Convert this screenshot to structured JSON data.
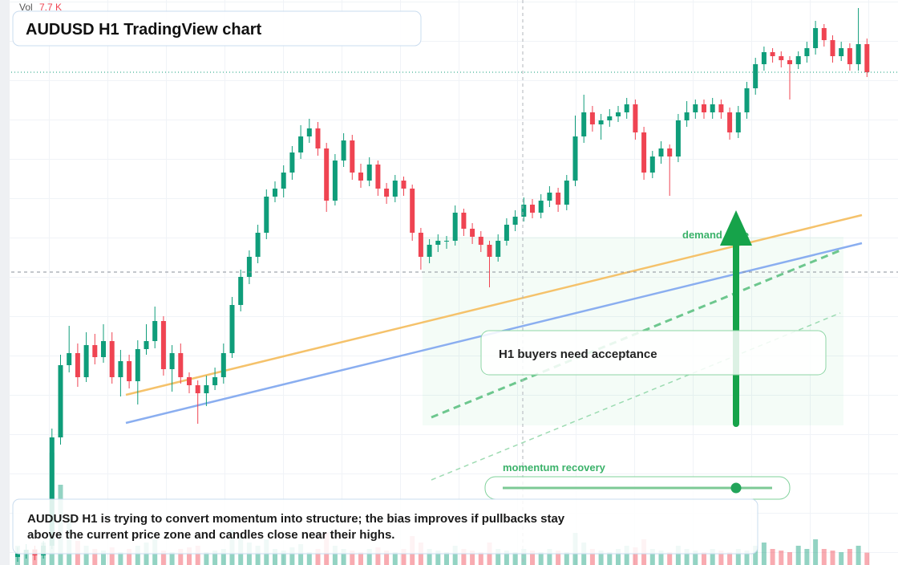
{
  "chart_data": {
    "type": "candlestick",
    "title": "AUDUSD H1 TradingView chart",
    "volume_label": "Vol",
    "volume_readout": "7.7 K",
    "annotations": {
      "zone": "demand zone",
      "callout": "H1 buyers need acceptance",
      "slider": "momentum recovery",
      "note": "AUDUSD H1 is trying to convert momentum into structure; the bias improves if pullbacks stay above the current price zone and candles close near their highs."
    },
    "up_color": "#0f9d7a",
    "down_color": "#ef4452",
    "ylim": [
      0,
      704
    ],
    "volume_lim": [
      0,
      352
    ],
    "candles": [
      [
        10,
        22,
        4,
        14
      ],
      [
        14,
        26,
        8,
        19
      ],
      [
        19,
        24,
        6,
        12
      ],
      [
        12,
        30,
        8,
        24
      ],
      [
        24,
        170,
        20,
        159
      ],
      [
        159,
        262,
        150,
        249
      ],
      [
        249,
        298,
        240,
        264
      ],
      [
        264,
        276,
        222,
        234
      ],
      [
        234,
        290,
        228,
        274
      ],
      [
        274,
        288,
        250,
        259
      ],
      [
        259,
        300,
        252,
        279
      ],
      [
        279,
        290,
        226,
        234
      ],
      [
        234,
        268,
        210,
        254
      ],
      [
        254,
        262,
        220,
        229
      ],
      [
        229,
        280,
        200,
        269
      ],
      [
        269,
        300,
        262,
        279
      ],
      [
        279,
        322,
        270,
        304
      ],
      [
        304,
        310,
        236,
        244
      ],
      [
        244,
        274,
        216,
        264
      ],
      [
        264,
        276,
        226,
        234
      ],
      [
        234,
        240,
        214,
        224
      ],
      [
        224,
        230,
        176,
        214
      ],
      [
        214,
        236,
        198,
        224
      ],
      [
        224,
        246,
        218,
        234
      ],
      [
        234,
        276,
        226,
        264
      ],
      [
        264,
        334,
        258,
        324
      ],
      [
        324,
        368,
        316,
        359
      ],
      [
        359,
        392,
        350,
        384
      ],
      [
        384,
        424,
        376,
        414
      ],
      [
        414,
        468,
        406,
        459
      ],
      [
        459,
        478,
        452,
        469
      ],
      [
        469,
        498,
        458,
        489
      ],
      [
        489,
        522,
        480,
        514
      ],
      [
        514,
        548,
        506,
        534
      ],
      [
        534,
        556,
        526,
        544
      ],
      [
        544,
        552,
        510,
        519
      ],
      [
        519,
        526,
        440,
        454
      ],
      [
        454,
        512,
        448,
        504
      ],
      [
        504,
        538,
        496,
        529
      ],
      [
        529,
        536,
        480,
        489
      ],
      [
        489,
        500,
        470,
        479
      ],
      [
        479,
        508,
        472,
        499
      ],
      [
        499,
        504,
        460,
        469
      ],
      [
        469,
        476,
        450,
        459
      ],
      [
        459,
        486,
        452,
        479
      ],
      [
        479,
        484,
        460,
        469
      ],
      [
        469,
        474,
        404,
        414
      ],
      [
        414,
        420,
        368,
        384
      ],
      [
        384,
        406,
        376,
        399
      ],
      [
        399,
        412,
        390,
        404
      ],
      [
        404,
        410,
        394,
        404
      ],
      [
        404,
        448,
        398,
        439
      ],
      [
        439,
        444,
        410,
        419
      ],
      [
        419,
        426,
        400,
        409
      ],
      [
        409,
        416,
        390,
        399
      ],
      [
        399,
        404,
        346,
        384
      ],
      [
        384,
        412,
        378,
        404
      ],
      [
        404,
        432,
        398,
        424
      ],
      [
        424,
        442,
        416,
        434
      ],
      [
        434,
        458,
        428,
        449
      ],
      [
        449,
        456,
        432,
        439
      ],
      [
        439,
        462,
        432,
        454
      ],
      [
        454,
        472,
        446,
        464
      ],
      [
        464,
        470,
        440,
        449
      ],
      [
        449,
        486,
        442,
        479
      ],
      [
        479,
        560,
        472,
        534
      ],
      [
        534,
        586,
        526,
        564
      ],
      [
        564,
        572,
        540,
        549
      ],
      [
        549,
        562,
        530,
        554
      ],
      [
        554,
        568,
        546,
        559
      ],
      [
        559,
        572,
        552,
        564
      ],
      [
        564,
        582,
        556,
        574
      ],
      [
        574,
        580,
        530,
        539
      ],
      [
        539,
        546,
        480,
        489
      ],
      [
        489,
        516,
        482,
        509
      ],
      [
        509,
        528,
        500,
        519
      ],
      [
        519,
        524,
        460,
        509
      ],
      [
        509,
        562,
        502,
        554
      ],
      [
        554,
        578,
        546,
        564
      ],
      [
        564,
        580,
        556,
        574
      ],
      [
        574,
        580,
        556,
        564
      ],
      [
        564,
        582,
        556,
        574
      ],
      [
        574,
        580,
        556,
        564
      ],
      [
        564,
        570,
        530,
        539
      ],
      [
        539,
        572,
        532,
        564
      ],
      [
        564,
        602,
        556,
        594
      ],
      [
        594,
        632,
        586,
        624
      ],
      [
        624,
        646,
        616,
        639
      ],
      [
        639,
        644,
        626,
        634
      ],
      [
        634,
        640,
        620,
        629
      ],
      [
        629,
        634,
        580,
        624
      ],
      [
        624,
        640,
        618,
        634
      ],
      [
        634,
        652,
        626,
        644
      ],
      [
        644,
        678,
        636,
        669
      ],
      [
        669,
        674,
        646,
        654
      ],
      [
        654,
        660,
        626,
        634
      ],
      [
        634,
        652,
        628,
        644
      ],
      [
        644,
        650,
        616,
        624
      ],
      [
        624,
        694,
        616,
        649
      ],
      [
        649,
        656,
        608,
        614
      ]
    ],
    "volume": [
      12,
      8,
      10,
      14,
      70,
      50,
      30,
      15,
      12,
      10,
      9,
      11,
      8,
      10,
      12,
      14,
      16,
      9,
      8,
      10,
      11,
      12,
      8,
      9,
      10,
      22,
      18,
      14,
      12,
      16,
      10,
      9,
      11,
      13,
      8,
      10,
      20,
      12,
      10,
      9,
      8,
      10,
      11,
      9,
      8,
      10,
      18,
      14,
      10,
      9,
      8,
      12,
      10,
      9,
      8,
      14,
      10,
      9,
      8,
      10,
      9,
      8,
      10,
      9,
      8,
      20,
      14,
      10,
      9,
      8,
      10,
      12,
      11,
      16,
      10,
      9,
      8,
      12,
      10,
      9,
      8,
      10,
      9,
      8,
      10,
      9,
      12,
      14,
      10,
      9,
      8,
      12,
      10,
      16,
      10,
      9,
      8,
      10,
      12,
      7.7
    ]
  }
}
